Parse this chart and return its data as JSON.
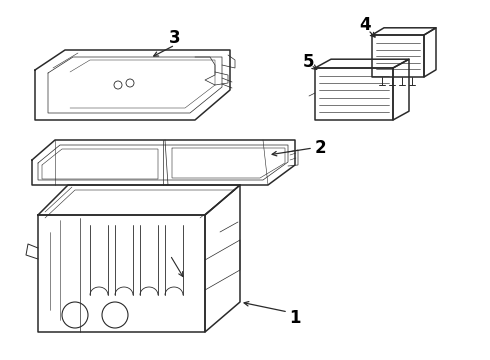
{
  "background_color": "#ffffff",
  "line_color": "#2a2a2a",
  "label_color": "#000000",
  "figsize": [
    4.9,
    3.6
  ],
  "dpi": 100,
  "lw_main": 1.1,
  "lw_detail": 0.6,
  "lw_inner": 0.5
}
